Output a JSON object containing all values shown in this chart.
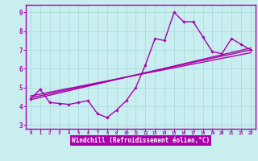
{
  "xlabel": "Windchill (Refroidissement éolien,°C)",
  "bg_color": "#c8eef0",
  "grid_color": "#b0dde0",
  "line_color": "#aa00aa",
  "axis_bg": "#6600aa",
  "xlim": [
    -0.5,
    23.5
  ],
  "ylim": [
    2.8,
    9.4
  ],
  "xticks": [
    0,
    1,
    2,
    3,
    4,
    5,
    6,
    7,
    8,
    9,
    10,
    11,
    12,
    13,
    14,
    15,
    16,
    17,
    18,
    19,
    20,
    21,
    22,
    23
  ],
  "yticks": [
    3,
    4,
    5,
    6,
    7,
    8,
    9
  ],
  "line1_x": [
    0,
    1,
    2,
    3,
    4,
    5,
    6,
    7,
    8,
    9,
    10,
    11,
    12,
    13,
    14,
    15,
    16,
    17,
    18,
    19,
    20,
    21,
    22,
    23
  ],
  "line1_y": [
    4.4,
    4.9,
    4.2,
    4.15,
    4.1,
    4.2,
    4.3,
    3.6,
    3.4,
    3.8,
    4.3,
    5.0,
    6.2,
    7.6,
    7.5,
    9.0,
    8.5,
    8.5,
    7.7,
    6.9,
    6.8,
    7.6,
    7.3,
    7.0
  ],
  "line2_x": [
    0,
    23
  ],
  "line2_y": [
    4.35,
    7.1
  ],
  "line3_x": [
    0,
    23
  ],
  "line3_y": [
    4.45,
    7.0
  ],
  "line4_x": [
    0,
    23
  ],
  "line4_y": [
    4.55,
    6.85
  ]
}
